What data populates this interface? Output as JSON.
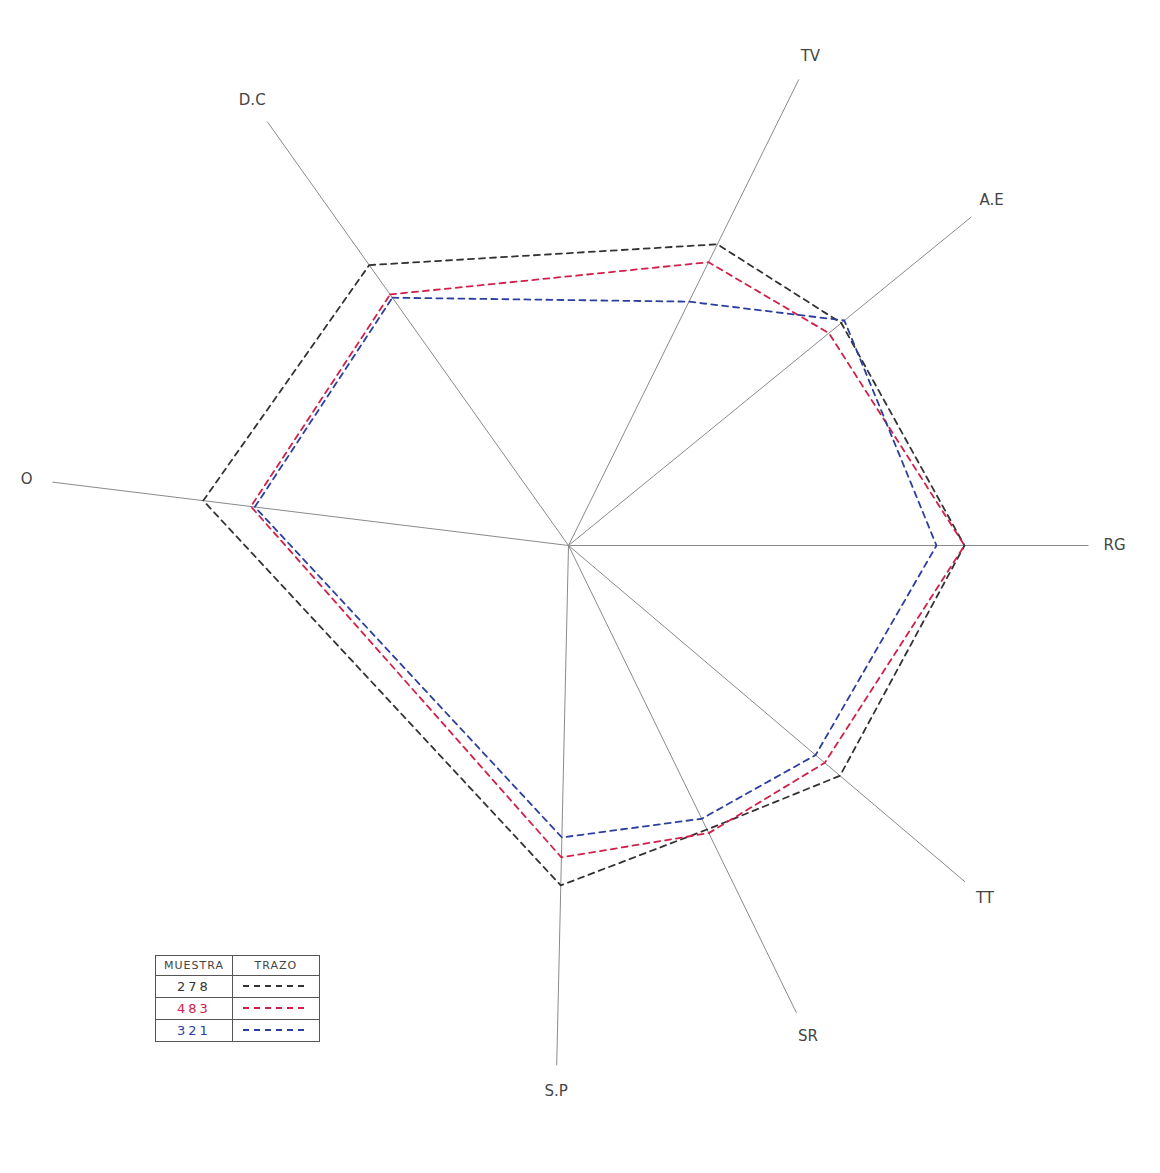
{
  "chart_data": {
    "type": "radar",
    "categories": [
      "D.C",
      "TV",
      "A.E",
      "RG",
      "TT",
      "SR",
      "S.P",
      "O"
    ],
    "series": [
      {
        "name": "278",
        "color": "#333333",
        "line_style": "dashed",
        "values": [
          8.6,
          8.4,
          8.8,
          9.9,
          8.9,
          7.9,
          8.5,
          9.2
        ]
      },
      {
        "name": "483",
        "color": "#d0204a",
        "line_style": "dashed",
        "values": [
          7.7,
          7.9,
          8.4,
          9.9,
          8.4,
          8.0,
          7.8,
          8.0
        ]
      },
      {
        "name": "321",
        "color": "#2b3f9e",
        "line_style": "dashed",
        "values": [
          7.6,
          6.8,
          8.9,
          9.2,
          8.1,
          7.6,
          7.3,
          7.9
        ]
      }
    ],
    "ylim": [
      0,
      13
    ],
    "tick_labels": false,
    "legend": "bottom-left",
    "legend_columns": [
      "MUESTRA",
      "TRAZO"
    ]
  }
}
